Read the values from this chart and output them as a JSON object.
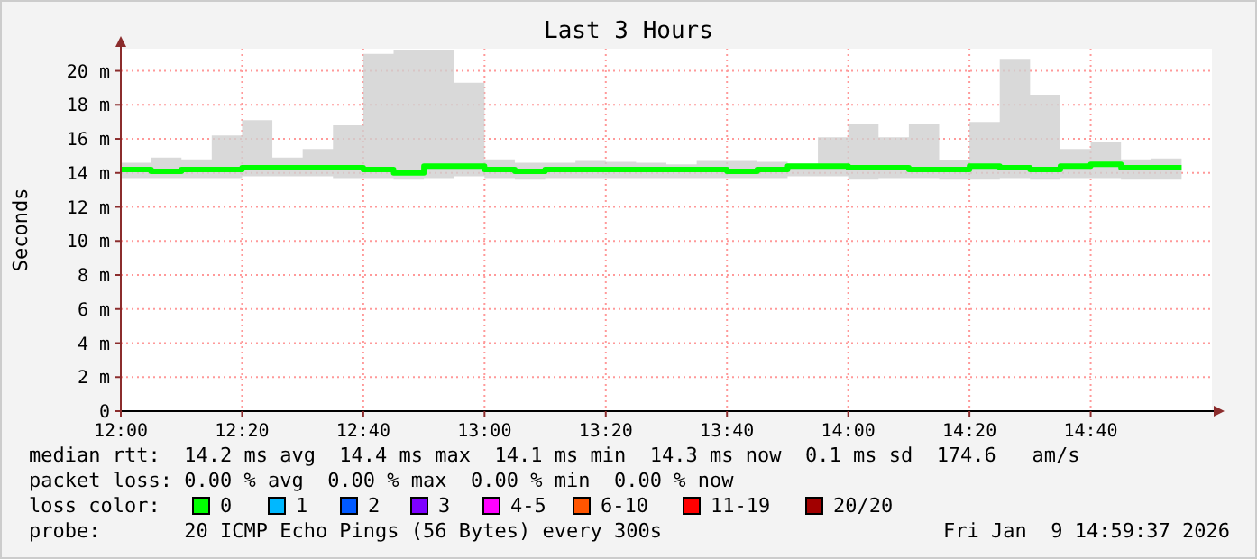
{
  "chart_data": {
    "type": "step",
    "title": "Last 3 Hours",
    "ylabel": "Seconds",
    "x": [
      "2026-01-09T12:00",
      "2026-01-09T12:05",
      "2026-01-09T12:10",
      "2026-01-09T12:15",
      "2026-01-09T12:20",
      "2026-01-09T12:25",
      "2026-01-09T12:30",
      "2026-01-09T12:35",
      "2026-01-09T12:40",
      "2026-01-09T12:45",
      "2026-01-09T12:50",
      "2026-01-09T12:55",
      "2026-01-09T13:00",
      "2026-01-09T13:05",
      "2026-01-09T13:10",
      "2026-01-09T13:15",
      "2026-01-09T13:20",
      "2026-01-09T13:25",
      "2026-01-09T13:30",
      "2026-01-09T13:35",
      "2026-01-09T13:40",
      "2026-01-09T13:45",
      "2026-01-09T13:50",
      "2026-01-09T13:55",
      "2026-01-09T14:00",
      "2026-01-09T14:05",
      "2026-01-09T14:10",
      "2026-01-09T14:15",
      "2026-01-09T14:20",
      "2026-01-09T14:25",
      "2026-01-09T14:30",
      "2026-01-09T14:35",
      "2026-01-09T14:40",
      "2026-01-09T14:45",
      "2026-01-09T14:50",
      "2026-01-09T14:55"
    ],
    "series": [
      {
        "color": "#00ff00",
        "values": [
          14.2,
          14.1,
          14.2,
          14.2,
          14.3,
          14.3,
          14.3,
          14.3,
          14.2,
          14.0,
          14.4,
          14.4,
          14.2,
          14.1,
          14.2,
          14.2,
          14.2,
          14.2,
          14.2,
          14.2,
          14.1,
          14.2,
          14.4,
          14.4,
          14.3,
          14.3,
          14.2,
          14.2,
          14.4,
          14.3,
          14.2,
          14.4,
          14.5,
          14.3,
          14.3,
          14.3
        ],
        "lower": [
          13.7,
          13.7,
          13.7,
          13.7,
          13.8,
          13.8,
          13.8,
          13.7,
          13.7,
          13.6,
          13.7,
          13.8,
          13.7,
          13.6,
          13.7,
          13.7,
          13.7,
          13.7,
          13.7,
          13.7,
          13.7,
          13.7,
          13.8,
          13.8,
          13.6,
          13.7,
          13.7,
          13.6,
          13.6,
          13.7,
          13.6,
          13.7,
          13.7,
          13.6,
          13.6,
          13.6
        ],
        "upper": [
          14.6,
          14.9,
          14.8,
          16.2,
          17.1,
          14.9,
          15.4,
          16.8,
          21.0,
          21.2,
          21.2,
          19.3,
          14.8,
          14.6,
          14.6,
          14.7,
          14.65,
          14.6,
          14.5,
          14.7,
          14.7,
          14.65,
          14.55,
          16.1,
          16.9,
          16.1,
          16.9,
          14.75,
          17.0,
          20.7,
          18.6,
          15.4,
          15.8,
          14.8,
          14.85,
          14.85
        ]
      }
    ],
    "xlim": [
      "2026-01-09T12:00",
      "2026-01-09T15:00"
    ],
    "xticks": [
      {
        "value": "2026-01-09T12:00",
        "label": "12:00"
      },
      {
        "value": "2026-01-09T12:20",
        "label": "12:20"
      },
      {
        "value": "2026-01-09T12:40",
        "label": "12:40"
      },
      {
        "value": "2026-01-09T13:00",
        "label": "13:00"
      },
      {
        "value": "2026-01-09T13:20",
        "label": "13:20"
      },
      {
        "value": "2026-01-09T13:40",
        "label": "13:40"
      },
      {
        "value": "2026-01-09T14:00",
        "label": "14:00"
      },
      {
        "value": "2026-01-09T14:20",
        "label": "14:20"
      },
      {
        "value": "2026-01-09T14:40",
        "label": "14:40"
      }
    ],
    "ylim": [
      0,
      21.3
    ],
    "yticks": [
      0,
      {
        "value": 2,
        "label": "2 m"
      },
      {
        "value": 4,
        "label": "4 m"
      },
      {
        "value": 6,
        "label": "6 m"
      },
      {
        "value": 8,
        "label": "8 m"
      },
      {
        "value": 10,
        "label": "10 m"
      },
      {
        "value": 12,
        "label": "12 m"
      },
      {
        "value": 14,
        "label": "14 m"
      },
      {
        "value": 16,
        "label": "16 m"
      },
      {
        "value": 18,
        "label": "18 m"
      },
      {
        "value": 20,
        "label": "20 m"
      }
    ],
    "grid": true,
    "line_style": "solid",
    "annotations": [
      "median rtt:  14.2 ms avg  14.4 ms max  14.1 ms min  14.3 ms now  0.1 ms sd  174.6   am/s",
      "packet loss: 0.00 % avg  0.00 % max  0.00 % min  0.00 % now",
      "loss color:",
      "0",
      "1",
      "2",
      "3",
      "4-5",
      "6-10",
      "11-19",
      "20/20",
      "probe:       20 ICMP Echo Pings (56 Bytes) every 300s",
      "Fri Jan  9 14:59:37 2026"
    ]
  }
}
